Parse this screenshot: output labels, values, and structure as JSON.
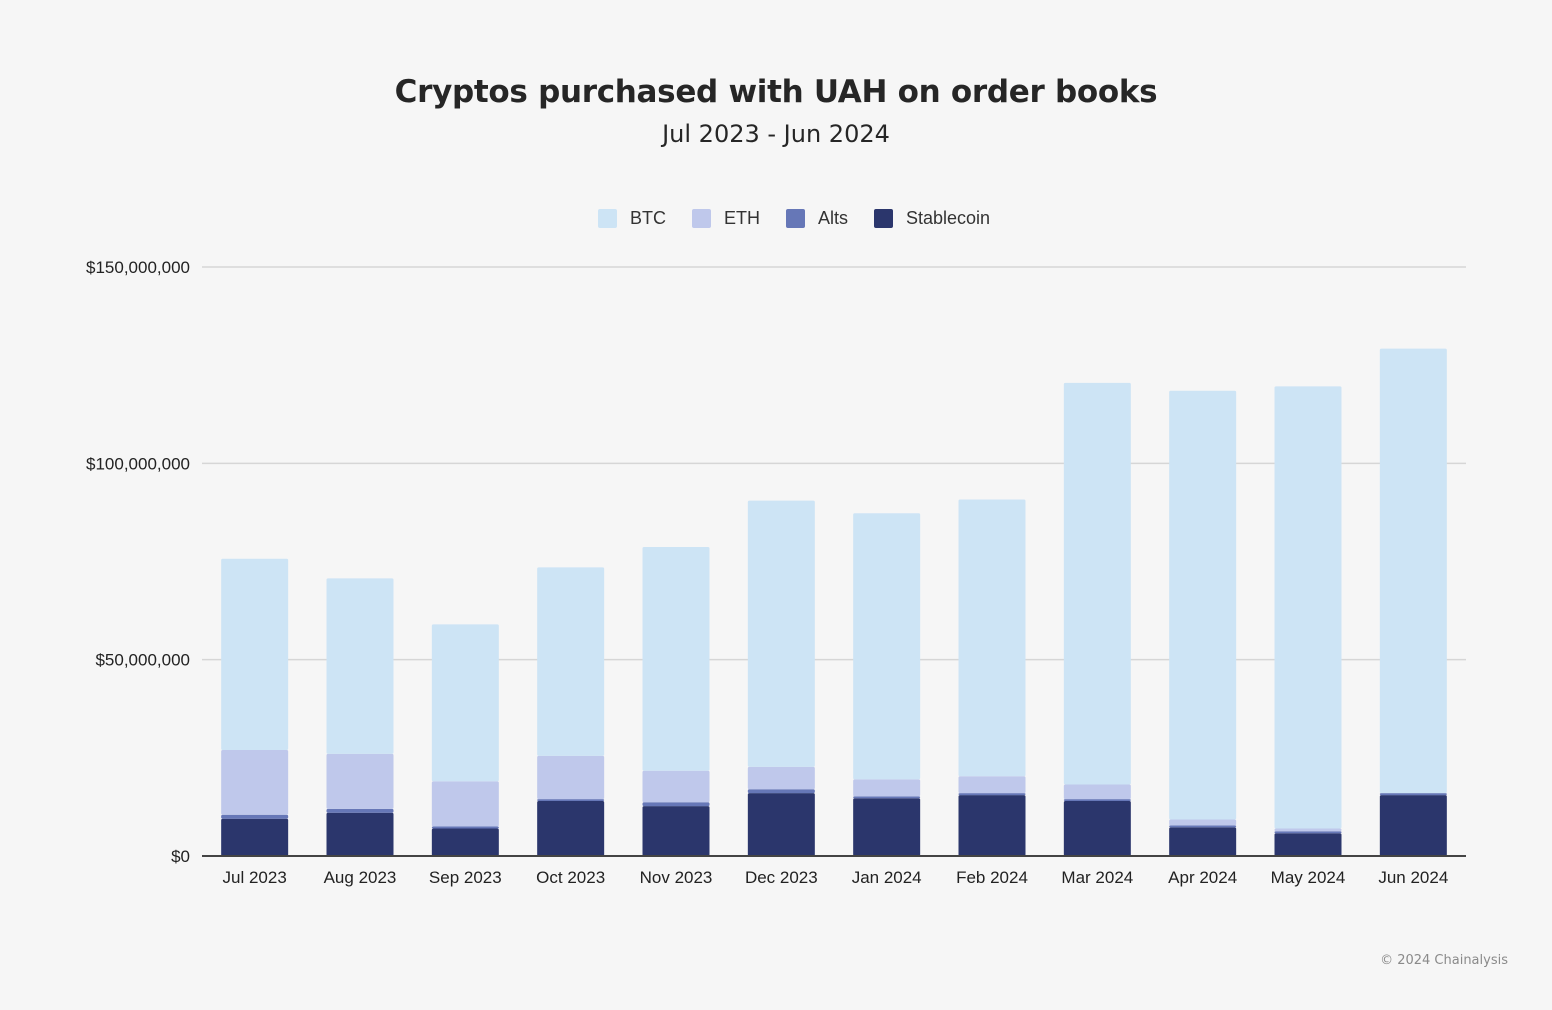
{
  "chart_data": {
    "type": "bar",
    "stacked": true,
    "title": "Cryptos purchased with UAH on order books",
    "subtitle": "Jul 2023 - Jun 2024",
    "legend_position": "top",
    "grid": true,
    "ylim": [
      0,
      150000000
    ],
    "y_ticks": [
      0,
      50000000,
      100000000,
      150000000
    ],
    "y_tick_labels": [
      "$0",
      "$50,000,000",
      "$100,000,000",
      "$150,000,000"
    ],
    "categories": [
      "Jul 2023",
      "Aug 2023",
      "Sep 2023",
      "Oct 2023",
      "Nov 2023",
      "Dec 2023",
      "Jan 2024",
      "Feb 2024",
      "Mar 2024",
      "Apr 2024",
      "May 2024",
      "Jun 2024"
    ],
    "series": [
      {
        "name": "Stablecoin",
        "color": "#2b366c",
        "values": [
          9500000,
          11000000,
          7000000,
          14000000,
          12700000,
          16000000,
          14700000,
          15500000,
          14000000,
          7300000,
          5800000,
          15500000
        ]
      },
      {
        "name": "Alts",
        "color": "#6677b7",
        "values": [
          1000000,
          1000000,
          500000,
          500000,
          1000000,
          1000000,
          500000,
          500000,
          500000,
          500000,
          500000,
          500000
        ]
      },
      {
        "name": "ETH",
        "color": "#bfc8eb",
        "values": [
          16500000,
          14000000,
          11500000,
          11000000,
          8000000,
          5700000,
          4300000,
          4300000,
          3700000,
          1500000,
          700000,
          0
        ]
      },
      {
        "name": "BTC",
        "color": "#cde4f5",
        "values": [
          48700000,
          44700000,
          40000000,
          48000000,
          57000000,
          67800000,
          67800000,
          70500000,
          102300000,
          109200000,
          112600000,
          113200000
        ]
      }
    ]
  },
  "legend": [
    {
      "label": "BTC",
      "color": "#cde4f5"
    },
    {
      "label": "ETH",
      "color": "#bfc8eb"
    },
    {
      "label": "Alts",
      "color": "#6677b7"
    },
    {
      "label": "Stablecoin",
      "color": "#2b366c"
    }
  ],
  "footer": {
    "copyright": "© 2024 Chainalysis"
  }
}
